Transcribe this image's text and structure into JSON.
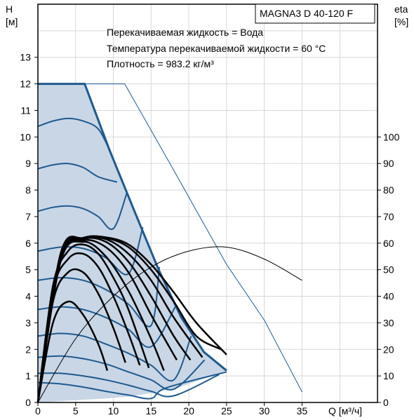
{
  "chart_data": {
    "type": "line",
    "title": "MAGNA3 D 40-120 F",
    "annotations": [
      "Перекачиваемая жидкость = Вода",
      "Температура перекачиваемой жидкости = 60 °C",
      "Плотность = 983.2 кг/м³"
    ],
    "xlabel": "Q [м³/ч]",
    "ylabel": "H\n[м]",
    "y2label": "eta\n[%]",
    "xlim": [
      0,
      45
    ],
    "ylim": [
      0,
      15
    ],
    "y2lim": [
      0,
      150
    ],
    "grid": true,
    "x_ticks": [
      "0",
      "5",
      "10",
      "15",
      "20",
      "25",
      "30",
      "35"
    ],
    "y_ticks": [
      "0",
      "1",
      "2",
      "3",
      "4",
      "5",
      "6",
      "7",
      "8",
      "9",
      "10",
      "11",
      "12",
      "13"
    ],
    "y2_ticks": [
      "0",
      "10",
      "20",
      "30",
      "40",
      "50",
      "60",
      "70",
      "80",
      "90",
      "100"
    ],
    "colors": {
      "area_fill": "#c9d6e6",
      "curve": "#1e5a8e",
      "black": "#000000",
      "grid": "#d8d8d8"
    },
    "area_polygon": [
      [
        0,
        12
      ],
      [
        6.2,
        12
      ],
      [
        9.5,
        9.5
      ],
      [
        12.8,
        7.2
      ],
      [
        16,
        5
      ],
      [
        19,
        3.2
      ],
      [
        22,
        1.9
      ],
      [
        25,
        1.2
      ],
      [
        22,
        0.9
      ],
      [
        18.5,
        0.55
      ],
      [
        15,
        0.35
      ],
      [
        12,
        0.22
      ],
      [
        9,
        0.15
      ],
      [
        0,
        0
      ]
    ],
    "max_curve": [
      [
        0,
        12
      ],
      [
        6.2,
        12
      ],
      [
        9.5,
        9.5
      ],
      [
        12.8,
        7.2
      ],
      [
        16,
        5
      ],
      [
        19,
        3.2
      ],
      [
        22,
        1.9
      ],
      [
        25,
        1.2
      ]
    ],
    "max_curve_line": [
      [
        0,
        12
      ],
      [
        11.5,
        12
      ],
      [
        17.5,
        9
      ],
      [
        25,
        5.2
      ],
      [
        30,
        3.1
      ],
      [
        35,
        0.4
      ]
    ],
    "power_curve": [
      [
        0,
        12
      ],
      [
        11.5,
        12
      ],
      [
        17.5,
        9
      ],
      [
        25,
        5.2
      ],
      [
        30,
        3.1
      ],
      [
        35,
        0.4
      ]
    ],
    "head_curves": [
      [
        [
          0,
          10.4
        ],
        [
          2,
          10.6
        ],
        [
          4,
          10.7
        ],
        [
          6,
          10.6
        ],
        [
          8,
          10.3
        ],
        [
          9.5,
          9.5
        ]
      ],
      [
        [
          0,
          8.8
        ],
        [
          2,
          8.95
        ],
        [
          4,
          9.0
        ],
        [
          6,
          8.85
        ],
        [
          8,
          8.5
        ],
        [
          10.5,
          8.3
        ]
      ],
      [
        [
          0,
          7.2
        ],
        [
          2,
          7.35
        ],
        [
          4,
          7.4
        ],
        [
          6,
          7.3
        ],
        [
          8,
          7.0
        ],
        [
          10,
          6.55
        ],
        [
          11.8,
          7.9
        ]
      ],
      [
        [
          0,
          5.7
        ],
        [
          3,
          5.85
        ],
        [
          6,
          5.8
        ],
        [
          9,
          5.45
        ],
        [
          12,
          4.85
        ],
        [
          13.9,
          6.6
        ]
      ],
      [
        [
          0,
          4.6
        ],
        [
          3,
          4.7
        ],
        [
          6,
          4.6
        ],
        [
          9,
          4.25
        ],
        [
          12,
          3.7
        ],
        [
          15,
          2.9
        ],
        [
          16.1,
          5.1
        ]
      ],
      [
        [
          0,
          3.5
        ],
        [
          3,
          3.6
        ],
        [
          6,
          3.5
        ],
        [
          9,
          3.2
        ],
        [
          12,
          2.75
        ],
        [
          15,
          2.1
        ],
        [
          18.2,
          3.6
        ]
      ],
      [
        [
          0,
          2.5
        ],
        [
          3,
          2.6
        ],
        [
          6,
          2.5
        ],
        [
          9,
          2.2
        ],
        [
          12,
          1.85
        ],
        [
          15,
          1.4
        ],
        [
          18,
          0.85
        ],
        [
          20.3,
          2.5
        ]
      ],
      [
        [
          0,
          1.7
        ],
        [
          3,
          1.75
        ],
        [
          6,
          1.65
        ],
        [
          9,
          1.45
        ],
        [
          12,
          1.15
        ],
        [
          15,
          0.85
        ],
        [
          18,
          0.5
        ],
        [
          22.1,
          1.6
        ]
      ],
      [
        [
          0,
          1.1
        ],
        [
          3,
          1.1
        ],
        [
          6,
          1.0
        ],
        [
          9,
          0.85
        ],
        [
          12,
          0.65
        ],
        [
          15,
          0.42
        ],
        [
          18,
          0.25
        ],
        [
          24,
          1.05
        ]
      ],
      [
        [
          0,
          0.75
        ],
        [
          3,
          0.7
        ],
        [
          6,
          0.58
        ],
        [
          9,
          0.42
        ],
        [
          12,
          0.28
        ],
        [
          15,
          0.15
        ],
        [
          17,
          0.55
        ],
        [
          25,
          1.15
        ]
      ]
    ],
    "eta_curves": [
      [
        [
          0,
          0
        ],
        [
          2,
          3.0
        ],
        [
          4,
          3.8
        ],
        [
          6,
          3.3
        ],
        [
          8,
          2.2
        ],
        [
          9.2,
          1.2
        ]
      ],
      [
        [
          0,
          0
        ],
        [
          2,
          3.8
        ],
        [
          4,
          4.9
        ],
        [
          6,
          4.9
        ],
        [
          8,
          4.1
        ],
        [
          10,
          2.8
        ],
        [
          11.6,
          1.5
        ]
      ],
      [
        [
          0,
          0
        ],
        [
          2,
          4.2
        ],
        [
          4,
          5.4
        ],
        [
          6,
          5.6
        ],
        [
          8,
          5.1
        ],
        [
          10,
          4.0
        ],
        [
          12,
          2.6
        ],
        [
          13.5,
          1.4
        ]
      ],
      [
        [
          0,
          0
        ],
        [
          2,
          4.4
        ],
        [
          4,
          5.7
        ],
        [
          6,
          5.95
        ],
        [
          8,
          5.6
        ],
        [
          10,
          4.7
        ],
        [
          12,
          3.5
        ],
        [
          14.7,
          1.3
        ]
      ],
      [
        [
          0,
          0
        ],
        [
          3,
          5.3
        ],
        [
          6,
          6.05
        ],
        [
          9,
          5.5
        ],
        [
          12,
          4.2
        ],
        [
          15,
          2.4
        ],
        [
          16.7,
          1.2
        ]
      ],
      [
        [
          0,
          0
        ],
        [
          3,
          5.4
        ],
        [
          6,
          6.1
        ],
        [
          9,
          5.85
        ],
        [
          12,
          4.9
        ],
        [
          15,
          3.3
        ],
        [
          18.4,
          1.6
        ]
      ],
      [
        [
          0,
          0
        ],
        [
          3,
          5.45
        ],
        [
          6,
          6.15
        ],
        [
          9,
          6.05
        ],
        [
          12,
          5.3
        ],
        [
          15,
          4.0
        ],
        [
          18,
          2.5
        ],
        [
          20.2,
          1.6
        ]
      ],
      [
        [
          0,
          0
        ],
        [
          3,
          5.5
        ],
        [
          6,
          6.17
        ],
        [
          9,
          6.15
        ],
        [
          12,
          5.6
        ],
        [
          15,
          4.6
        ],
        [
          18,
          3.2
        ],
        [
          21.8,
          1.7
        ]
      ],
      [
        [
          0,
          0
        ],
        [
          3,
          5.55
        ],
        [
          6,
          6.18
        ],
        [
          9,
          6.2
        ],
        [
          12,
          5.85
        ],
        [
          15,
          5.0
        ],
        [
          18,
          3.8
        ],
        [
          21,
          2.5
        ],
        [
          24.3,
          2.0
        ]
      ],
      [
        [
          0,
          0
        ],
        [
          3,
          5.6
        ],
        [
          6,
          6.2
        ],
        [
          9,
          6.22
        ],
        [
          12,
          5.95
        ],
        [
          15,
          5.2
        ],
        [
          18,
          4.15
        ],
        [
          21,
          3.0
        ],
        [
          25,
          1.8
        ]
      ]
    ],
    "eta_thin_curve": [
      [
        0,
        0
      ],
      [
        5,
        2.4
      ],
      [
        10,
        4.0
      ],
      [
        15,
        5.1
      ],
      [
        20,
        5.7
      ],
      [
        25,
        5.85
      ],
      [
        30,
        5.4
      ],
      [
        35,
        4.6
      ]
    ]
  }
}
